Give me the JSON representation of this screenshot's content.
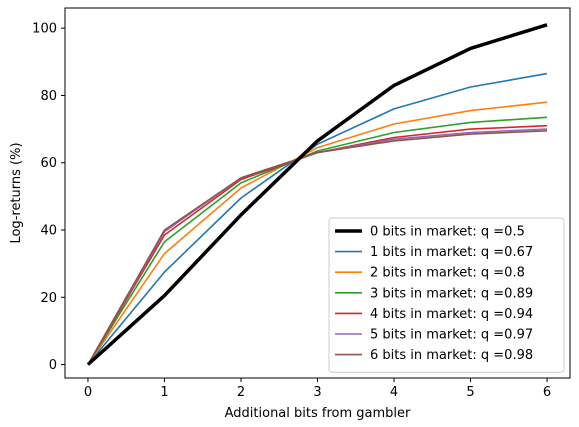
{
  "chart_data": {
    "type": "line",
    "title": "",
    "xlabel": "Additional bits from gambler",
    "ylabel": "Log-returns (%)",
    "x": [
      0,
      1,
      2,
      3,
      4,
      5,
      6
    ],
    "xlim": [
      -0.3,
      6.3
    ],
    "ylim": [
      -4,
      106
    ],
    "xticks": [
      0,
      1,
      2,
      3,
      4,
      5,
      6
    ],
    "yticks": [
      0,
      20,
      40,
      60,
      80,
      100
    ],
    "grid": false,
    "legend_position": "lower-right",
    "series": [
      {
        "name": "0 bits in market: q =0.5",
        "color": "#000000",
        "emphasis": true,
        "values": [
          0,
          20.5,
          44.5,
          66.5,
          83,
          94,
          101
        ]
      },
      {
        "name": "1 bits in market: q =0.67",
        "color": "#1f77b4",
        "values": [
          0,
          27.5,
          49.5,
          65.5,
          76,
          82.5,
          86.5
        ]
      },
      {
        "name": "2 bits in market: q =0.8",
        "color": "#ff7f0e",
        "values": [
          0,
          33,
          52.5,
          64.5,
          71.5,
          75.5,
          78
        ]
      },
      {
        "name": "3 bits in market: q =0.89",
        "color": "#2ca02c",
        "values": [
          0,
          36.5,
          54,
          63.5,
          69,
          72,
          73.5
        ]
      },
      {
        "name": "4 bits in market: q =0.94",
        "color": "#d62728",
        "values": [
          0,
          38.5,
          55,
          63,
          67.5,
          70,
          71
        ]
      },
      {
        "name": "5 bits in market: q =0.97",
        "color": "#9467bd",
        "values": [
          0,
          39.5,
          55.5,
          63,
          67,
          69,
          70
        ]
      },
      {
        "name": "6 bits in market: q =0.98",
        "color": "#8c564b",
        "values": [
          0,
          40,
          55.5,
          63,
          66.5,
          68.5,
          69.5
        ]
      }
    ]
  }
}
